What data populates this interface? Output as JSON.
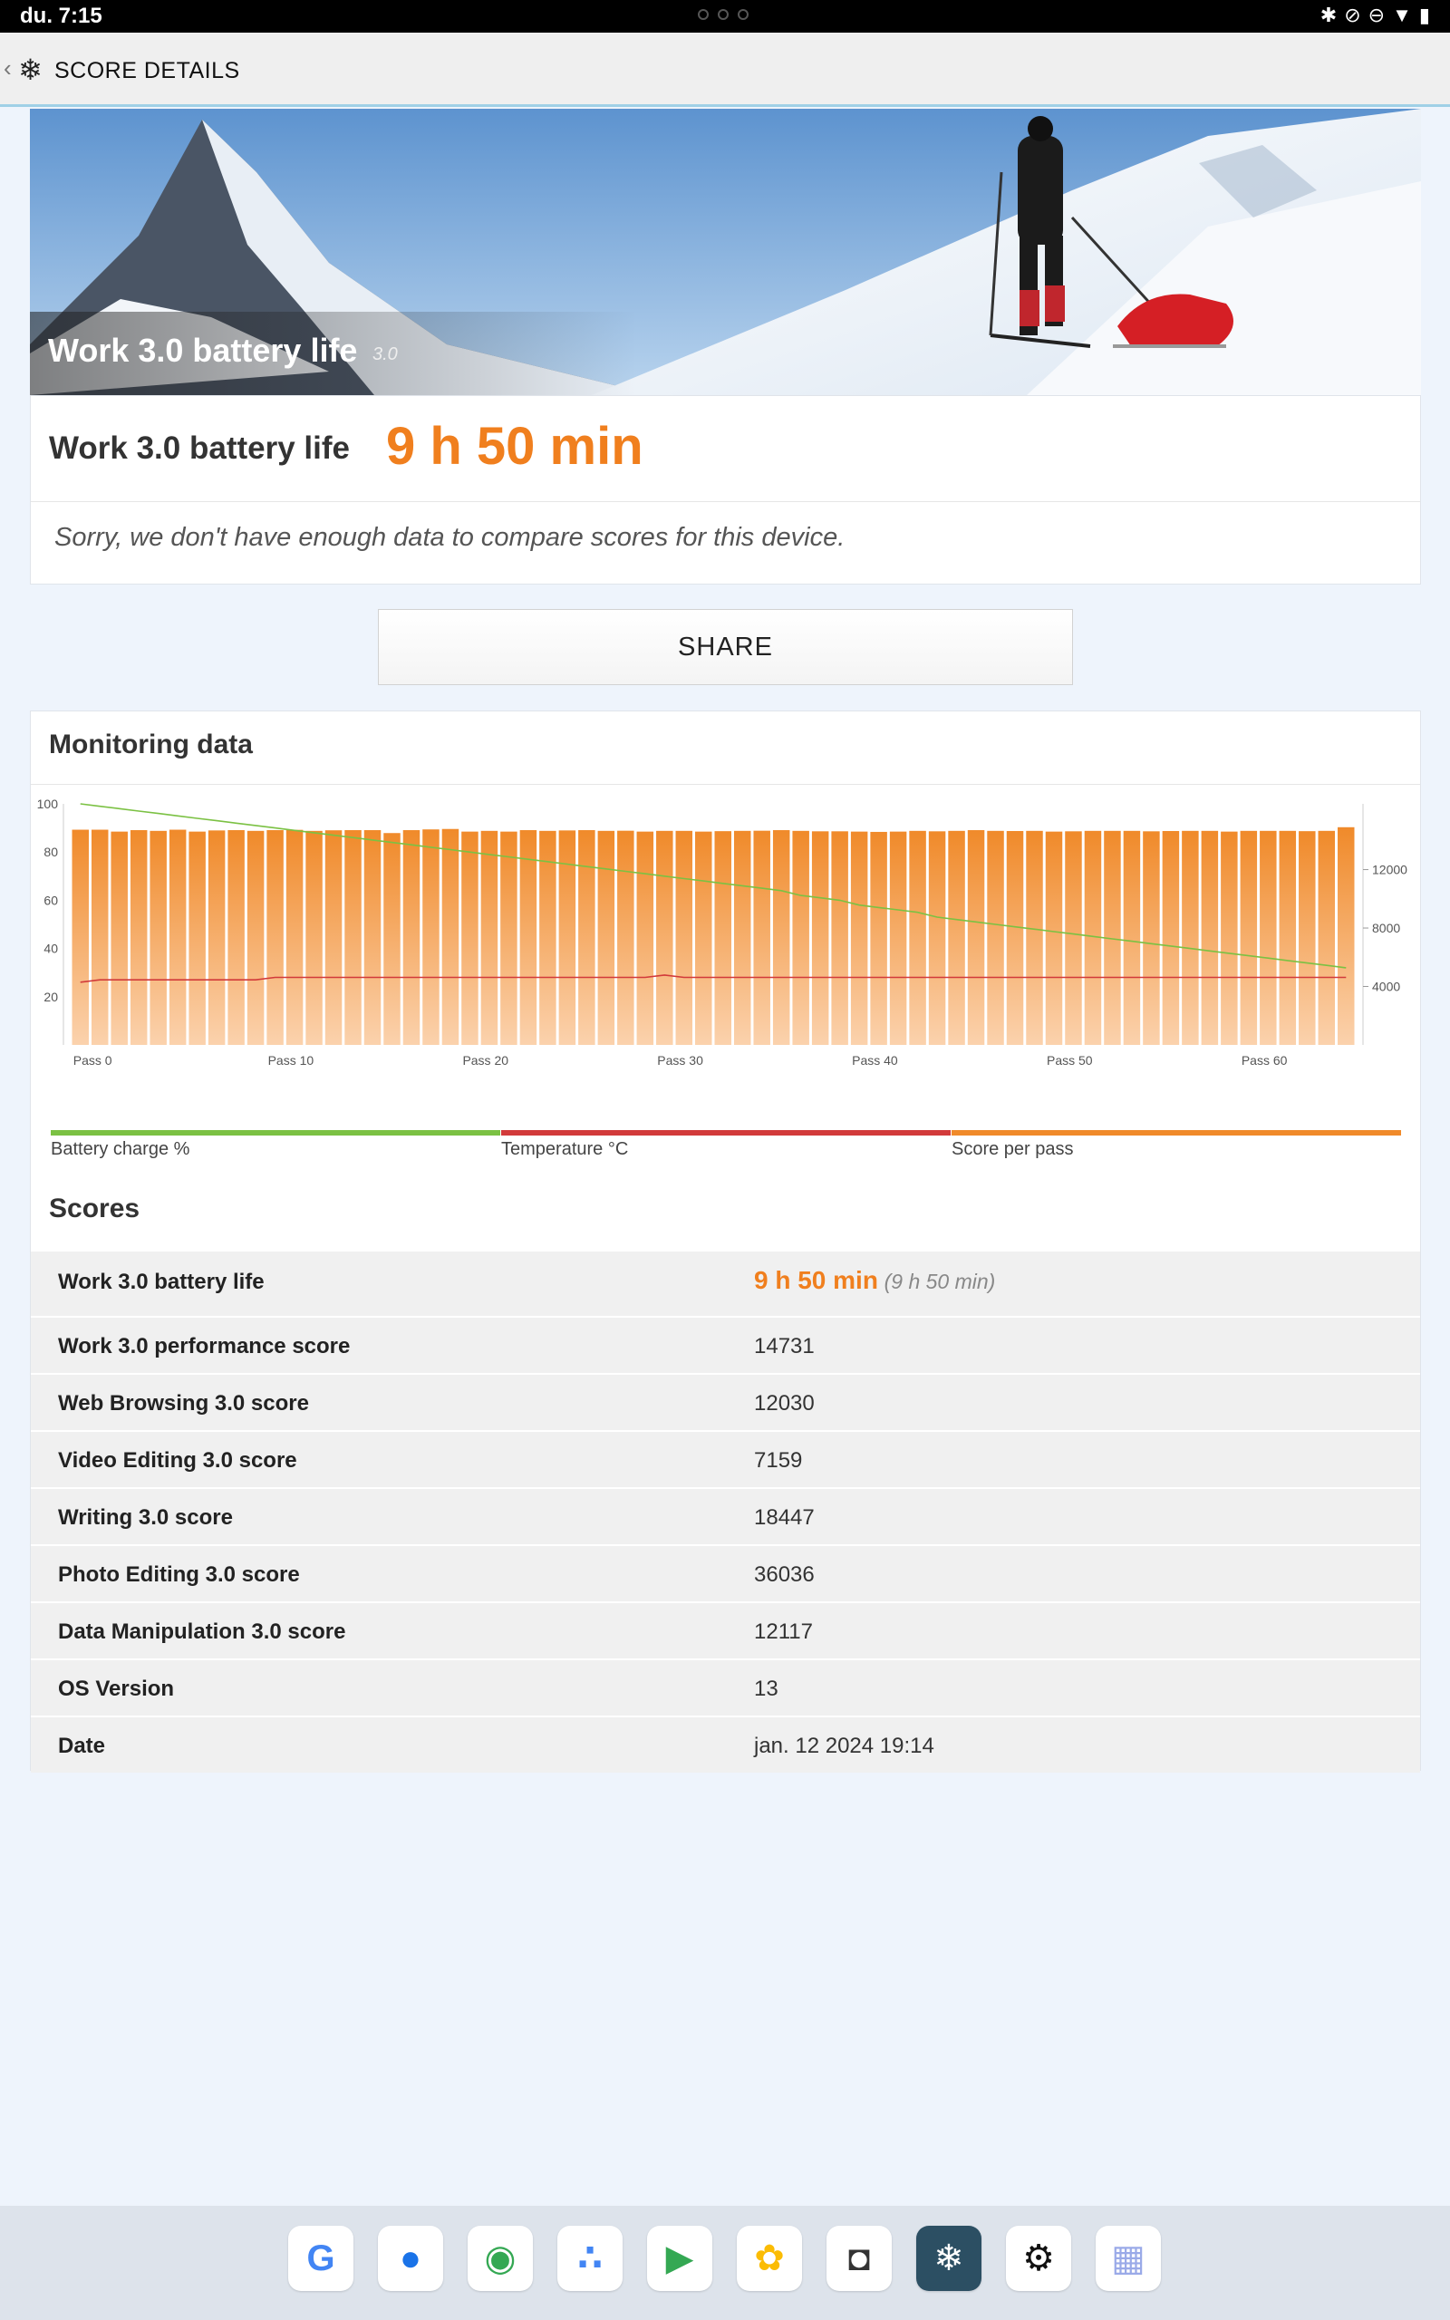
{
  "status_bar": {
    "time": "du. 7:15",
    "icons": [
      "bluetooth-icon",
      "mute-icon",
      "dnd-icon",
      "wifi-icon",
      "battery-icon"
    ]
  },
  "app_bar": {
    "title": "SCORE DETAILS"
  },
  "hero": {
    "title": "Work 3.0 battery life",
    "version": "3.0"
  },
  "result": {
    "label": "Work 3.0 battery life",
    "value": "9 h 50 min",
    "note": "Sorry, we don't have enough data to compare scores for this device."
  },
  "share_label": "SHARE",
  "monitoring": {
    "title": "Monitoring data",
    "legend": [
      {
        "label": "Battery charge %",
        "color": "#7bc143"
      },
      {
        "label": "Temperature °C",
        "color": "#d23a3a"
      },
      {
        "label": "Score per pass",
        "color": "#f08a2a"
      }
    ]
  },
  "chart_data": {
    "type": "bar",
    "x_tick_labels": [
      "Pass 0",
      "Pass 10",
      "Pass 20",
      "Pass 30",
      "Pass 40",
      "Pass 50",
      "Pass 60"
    ],
    "left_axis": {
      "ticks": [
        "20",
        "40",
        "60",
        "80",
        "100"
      ],
      "range": [
        0,
        100
      ]
    },
    "right_axis": {
      "ticks": [
        "4000",
        "8000",
        "12000"
      ],
      "range": [
        0,
        16500
      ]
    },
    "grid": false,
    "series": [
      {
        "name": "Score per pass",
        "axis": "right",
        "kind": "bar",
        "values": [
          14730,
          14730,
          14600,
          14700,
          14650,
          14730,
          14600,
          14680,
          14700,
          14650,
          14700,
          14720,
          14650,
          14690,
          14700,
          14700,
          14500,
          14700,
          14750,
          14780,
          14600,
          14650,
          14600,
          14700,
          14650,
          14680,
          14700,
          14650,
          14660,
          14600,
          14650,
          14650,
          14600,
          14630,
          14650,
          14660,
          14700,
          14650,
          14620,
          14620,
          14600,
          14580,
          14600,
          14650,
          14620,
          14650,
          14700,
          14650,
          14640,
          14650,
          14600,
          14620,
          14650,
          14650,
          14650,
          14620,
          14640,
          14650,
          14650,
          14600,
          14650,
          14650,
          14650,
          14630,
          14650,
          14900
        ]
      },
      {
        "name": "Battery charge %",
        "axis": "left",
        "kind": "line",
        "values": [
          100,
          99,
          98,
          97,
          96,
          95,
          94,
          93,
          92,
          91,
          90,
          89,
          88,
          87,
          86,
          85,
          84,
          83,
          82,
          81,
          80,
          79,
          78,
          77,
          76,
          75,
          74,
          73,
          72,
          71,
          70,
          69,
          68,
          67,
          66,
          65,
          64,
          62,
          61,
          60,
          58,
          57,
          56,
          55,
          53,
          52,
          51,
          50,
          49,
          48,
          47,
          46,
          45,
          44,
          43,
          42,
          41,
          40,
          39,
          38,
          37,
          36,
          35,
          34,
          33,
          32
        ]
      },
      {
        "name": "Temperature °C",
        "axis": "left",
        "kind": "line",
        "values": [
          26,
          27,
          27,
          27,
          27,
          27,
          27,
          27,
          27,
          27,
          28,
          28,
          28,
          28,
          28,
          28,
          28,
          28,
          28,
          28,
          28,
          28,
          28,
          28,
          28,
          28,
          28,
          28,
          28,
          28,
          29,
          28,
          28,
          28,
          28,
          28,
          28,
          28,
          28,
          28,
          28,
          28,
          28,
          28,
          28,
          28,
          28,
          28,
          28,
          28,
          28,
          28,
          28,
          28,
          28,
          28,
          28,
          28,
          28,
          28,
          28,
          28,
          28,
          28,
          28,
          28
        ]
      }
    ]
  },
  "scores": {
    "title": "Scores",
    "rows": [
      {
        "label": "Work 3.0 battery life",
        "value": "9 h 50 min",
        "sub": "(9 h 50 min)"
      },
      {
        "label": "Work 3.0 performance score",
        "value": "14731"
      },
      {
        "label": "Web Browsing 3.0 score",
        "value": "12030"
      },
      {
        "label": "Video Editing 3.0 score",
        "value": "7159"
      },
      {
        "label": "Writing 3.0 score",
        "value": "18447"
      },
      {
        "label": "Photo Editing 3.0 score",
        "value": "36036"
      },
      {
        "label": "Data Manipulation 3.0 score",
        "value": "12117"
      },
      {
        "label": "OS Version",
        "value": "13"
      },
      {
        "label": "Date",
        "value": "jan. 12 2024 19:14"
      }
    ]
  },
  "dock": {
    "apps": [
      {
        "name": "google-app-icon",
        "glyph": "G",
        "color": "#4285f4"
      },
      {
        "name": "messages-app-icon",
        "glyph": "●",
        "color": "#1a73e8"
      },
      {
        "name": "chrome-app-icon",
        "glyph": "◉",
        "color": "#34a853"
      },
      {
        "name": "assistant-app-icon",
        "glyph": "∴",
        "color": "#4285f4"
      },
      {
        "name": "play-store-app-icon",
        "glyph": "▶",
        "color": "#34a853"
      },
      {
        "name": "photos-app-icon",
        "glyph": "✿",
        "color": "#fbbc04"
      },
      {
        "name": "camera-app-icon",
        "glyph": "◘",
        "color": "#333333"
      },
      {
        "name": "pcmark-app-icon",
        "glyph": "❄",
        "color": "#ffffff"
      },
      {
        "name": "settings-app-icon",
        "glyph": "⚙",
        "color": "#111111"
      },
      {
        "name": "app-drawer-icon",
        "glyph": "▦",
        "color": "#9aaae8"
      }
    ]
  }
}
